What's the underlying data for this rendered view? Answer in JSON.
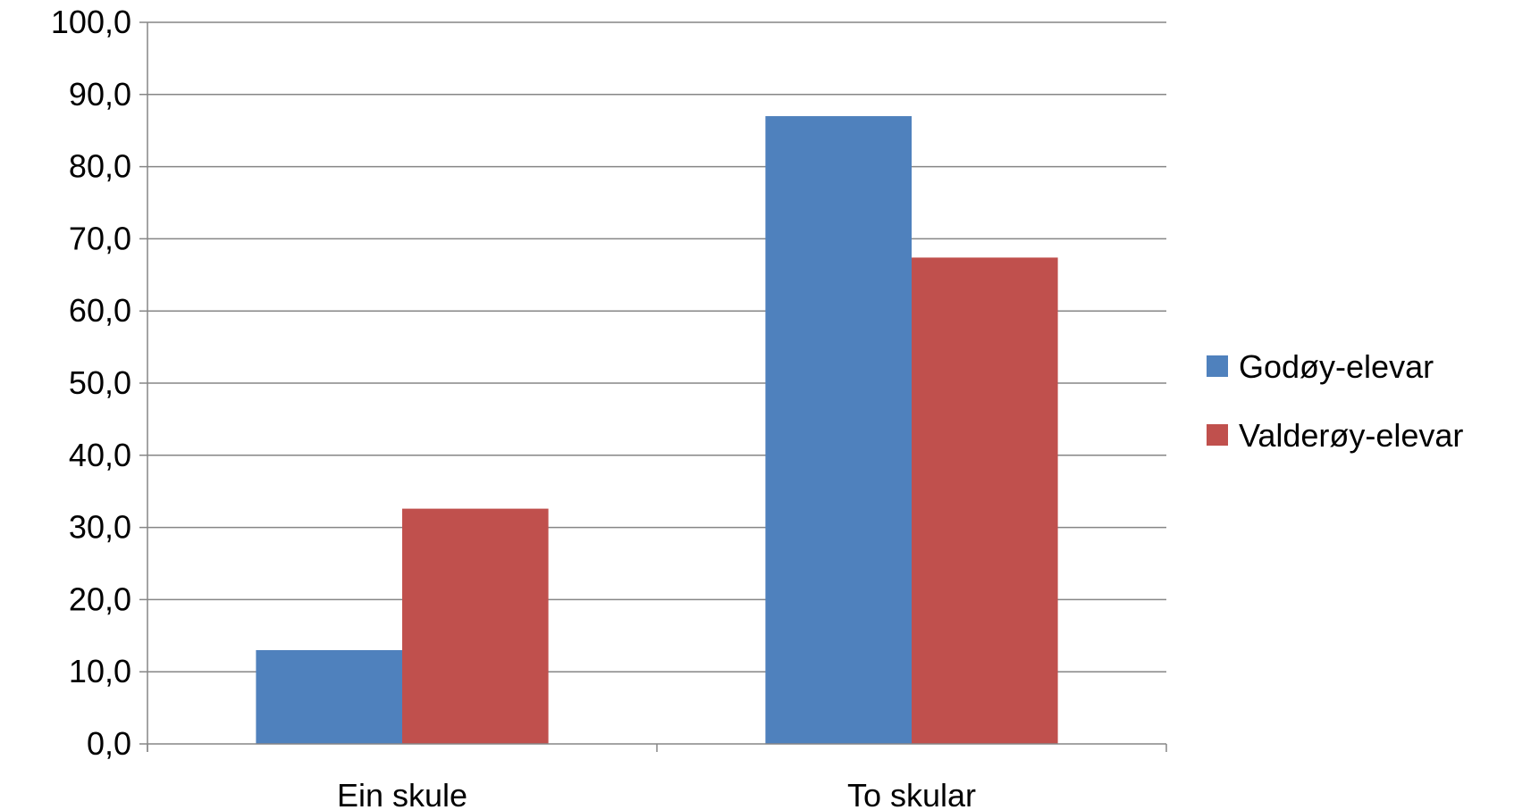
{
  "chart_data": {
    "type": "bar",
    "title": "",
    "xlabel": "",
    "ylabel": "",
    "categories": [
      "Ein skule",
      "To skular"
    ],
    "series": [
      {
        "name": "Godøy-elevar",
        "color": "#4F81BD",
        "values": [
          13.0,
          87.0
        ]
      },
      {
        "name": "Valderøy-elevar",
        "color": "#C0504D",
        "values": [
          32.6,
          67.4
        ]
      }
    ],
    "ylim": [
      0,
      100
    ],
    "ytick_step": 10,
    "ytick_labels": [
      "0,0",
      "10,0",
      "20,0",
      "30,0",
      "40,0",
      "50,0",
      "60,0",
      "70,0",
      "80,0",
      "90,0",
      "100,0"
    ],
    "grid": true,
    "legend_position": "right",
    "colors": {
      "gridline": "#868686",
      "axis": "#868686"
    }
  }
}
